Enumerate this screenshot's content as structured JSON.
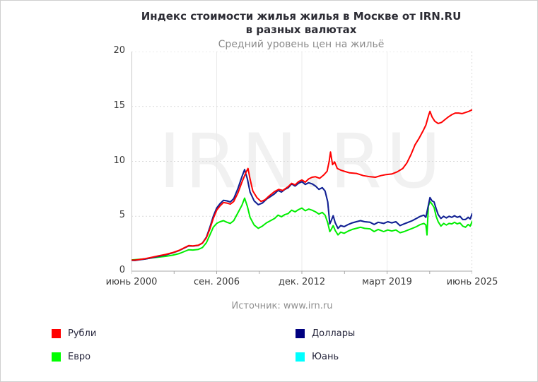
{
  "header": {
    "title_line1": "Индекс стоимости жилья жилья в Москве от IRN.RU",
    "title_line2": "в разных валютах",
    "subtitle": "Средний уровень цен на жильё"
  },
  "watermark": "IRN.RU",
  "source": "Источник: www.irn.ru",
  "legend": [
    {
      "id": "rub",
      "label": "Рубли",
      "color": "#ff0000"
    },
    {
      "id": "usd",
      "label": "Доллары",
      "color": "#000080"
    },
    {
      "id": "eur",
      "label": "Евро",
      "color": "#00ff00"
    },
    {
      "id": "cny",
      "label": "Юань",
      "color": "#00ffff"
    }
  ],
  "chart_data": {
    "type": "line",
    "title": "Индекс стоимости жилья жилья в Москве от IRN.RU в разных валютах",
    "subtitle": "Средний уровень цен на жильё",
    "xlabel": "",
    "ylabel": "",
    "xlim": [
      2000.5,
      2025.5
    ],
    "ylim": [
      0,
      20
    ],
    "y_ticks": [
      0,
      5,
      10,
      15,
      20
    ],
    "x_ticks": [
      {
        "label": "июнь 2000",
        "x": 2000.5
      },
      {
        "label": "сен. 2006",
        "x": 2006.75
      },
      {
        "label": "дек. 2012",
        "x": 2013.0
      },
      {
        "label": "март 2019",
        "x": 2019.25
      },
      {
        "label": "июнь 2025",
        "x": 2025.5
      }
    ],
    "grid": {
      "horizontal": "dotted",
      "vertical": "light-solid"
    },
    "legend_position": "bottom",
    "series": [
      {
        "id": "cny",
        "name": "Юань",
        "color": "#00ffff",
        "note": "not separately visible, coincides with Доллары",
        "points": "same_as:Доллары"
      },
      {
        "id": "eur",
        "name": "Евро",
        "color": "#00ee00",
        "points": [
          [
            2000.5,
            1.02
          ],
          [
            2000.75,
            1.05
          ],
          [
            2001,
            1.07
          ],
          [
            2001.5,
            1.12
          ],
          [
            2002,
            1.2
          ],
          [
            2002.5,
            1.28
          ],
          [
            2003,
            1.35
          ],
          [
            2003.5,
            1.45
          ],
          [
            2004,
            1.6
          ],
          [
            2004.4,
            1.8
          ],
          [
            2004.7,
            1.95
          ],
          [
            2005,
            1.92
          ],
          [
            2005.4,
            1.98
          ],
          [
            2005.7,
            2.15
          ],
          [
            2006,
            2.6
          ],
          [
            2006.25,
            3.3
          ],
          [
            2006.5,
            4.0
          ],
          [
            2006.75,
            4.35
          ],
          [
            2007,
            4.5
          ],
          [
            2007.25,
            4.6
          ],
          [
            2007.5,
            4.45
          ],
          [
            2007.75,
            4.35
          ],
          [
            2008,
            4.6
          ],
          [
            2008.3,
            5.3
          ],
          [
            2008.6,
            6.0
          ],
          [
            2008.8,
            6.65
          ],
          [
            2009,
            5.9
          ],
          [
            2009.2,
            4.9
          ],
          [
            2009.5,
            4.2
          ],
          [
            2009.8,
            3.9
          ],
          [
            2010.1,
            4.1
          ],
          [
            2010.4,
            4.4
          ],
          [
            2010.7,
            4.6
          ],
          [
            2011,
            4.8
          ],
          [
            2011.25,
            5.1
          ],
          [
            2011.5,
            4.95
          ],
          [
            2011.75,
            5.15
          ],
          [
            2012,
            5.25
          ],
          [
            2012.25,
            5.55
          ],
          [
            2012.5,
            5.4
          ],
          [
            2012.75,
            5.6
          ],
          [
            2013,
            5.75
          ],
          [
            2013.25,
            5.5
          ],
          [
            2013.5,
            5.65
          ],
          [
            2013.75,
            5.55
          ],
          [
            2014,
            5.4
          ],
          [
            2014.25,
            5.2
          ],
          [
            2014.5,
            5.35
          ],
          [
            2014.7,
            5.1
          ],
          [
            2014.9,
            4.4
          ],
          [
            2015.05,
            3.6
          ],
          [
            2015.15,
            3.8
          ],
          [
            2015.3,
            4.15
          ],
          [
            2015.45,
            3.7
          ],
          [
            2015.65,
            3.3
          ],
          [
            2015.85,
            3.55
          ],
          [
            2016.1,
            3.45
          ],
          [
            2016.4,
            3.65
          ],
          [
            2016.7,
            3.8
          ],
          [
            2017,
            3.9
          ],
          [
            2017.3,
            4.0
          ],
          [
            2017.6,
            3.9
          ],
          [
            2018,
            3.85
          ],
          [
            2018.3,
            3.6
          ],
          [
            2018.6,
            3.8
          ],
          [
            2019,
            3.6
          ],
          [
            2019.3,
            3.75
          ],
          [
            2019.6,
            3.65
          ],
          [
            2019.9,
            3.75
          ],
          [
            2020.2,
            3.5
          ],
          [
            2020.5,
            3.6
          ],
          [
            2020.8,
            3.75
          ],
          [
            2021.1,
            3.9
          ],
          [
            2021.4,
            4.05
          ],
          [
            2021.7,
            4.25
          ],
          [
            2021.95,
            4.35
          ],
          [
            2022.1,
            4.2
          ],
          [
            2022.18,
            3.3
          ],
          [
            2022.28,
            5.9
          ],
          [
            2022.4,
            6.35
          ],
          [
            2022.55,
            6.1
          ],
          [
            2022.7,
            5.8
          ],
          [
            2022.85,
            5.0
          ],
          [
            2023,
            4.5
          ],
          [
            2023.2,
            4.1
          ],
          [
            2023.4,
            4.35
          ],
          [
            2023.6,
            4.2
          ],
          [
            2023.8,
            4.35
          ],
          [
            2024,
            4.3
          ],
          [
            2024.2,
            4.45
          ],
          [
            2024.4,
            4.3
          ],
          [
            2024.6,
            4.4
          ],
          [
            2024.8,
            4.1
          ],
          [
            2025,
            4.0
          ],
          [
            2025.2,
            4.25
          ],
          [
            2025.35,
            4.1
          ],
          [
            2025.5,
            4.55
          ]
        ]
      },
      {
        "id": "usd",
        "name": "Доллары",
        "color": "#1a1a90",
        "points": [
          [
            2000.5,
            0.98
          ],
          [
            2000.75,
            0.97
          ],
          [
            2001,
            1.02
          ],
          [
            2001.5,
            1.1
          ],
          [
            2002,
            1.22
          ],
          [
            2002.5,
            1.35
          ],
          [
            2003,
            1.48
          ],
          [
            2003.5,
            1.65
          ],
          [
            2004,
            1.88
          ],
          [
            2004.4,
            2.12
          ],
          [
            2004.7,
            2.3
          ],
          [
            2005,
            2.28
          ],
          [
            2005.4,
            2.35
          ],
          [
            2005.7,
            2.55
          ],
          [
            2006,
            3.1
          ],
          [
            2006.25,
            4.0
          ],
          [
            2006.5,
            5.0
          ],
          [
            2006.75,
            5.75
          ],
          [
            2007,
            6.15
          ],
          [
            2007.25,
            6.45
          ],
          [
            2007.5,
            6.4
          ],
          [
            2007.75,
            6.3
          ],
          [
            2008,
            6.6
          ],
          [
            2008.3,
            7.5
          ],
          [
            2008.6,
            8.6
          ],
          [
            2008.8,
            9.25
          ],
          [
            2009,
            8.4
          ],
          [
            2009.2,
            7.2
          ],
          [
            2009.5,
            6.4
          ],
          [
            2009.8,
            6.05
          ],
          [
            2010.1,
            6.2
          ],
          [
            2010.4,
            6.55
          ],
          [
            2010.7,
            6.8
          ],
          [
            2011,
            7.05
          ],
          [
            2011.25,
            7.35
          ],
          [
            2011.5,
            7.2
          ],
          [
            2011.75,
            7.45
          ],
          [
            2012,
            7.6
          ],
          [
            2012.25,
            7.95
          ],
          [
            2012.5,
            7.75
          ],
          [
            2012.75,
            8.0
          ],
          [
            2013,
            8.15
          ],
          [
            2013.25,
            7.9
          ],
          [
            2013.5,
            8.05
          ],
          [
            2013.75,
            7.95
          ],
          [
            2014,
            7.75
          ],
          [
            2014.25,
            7.45
          ],
          [
            2014.5,
            7.6
          ],
          [
            2014.7,
            7.3
          ],
          [
            2014.9,
            6.3
          ],
          [
            2015.05,
            4.3
          ],
          [
            2015.15,
            4.6
          ],
          [
            2015.3,
            5.05
          ],
          [
            2015.45,
            4.4
          ],
          [
            2015.65,
            3.9
          ],
          [
            2015.85,
            4.15
          ],
          [
            2016.1,
            4.05
          ],
          [
            2016.4,
            4.25
          ],
          [
            2016.7,
            4.4
          ],
          [
            2017,
            4.5
          ],
          [
            2017.3,
            4.6
          ],
          [
            2017.6,
            4.5
          ],
          [
            2018,
            4.45
          ],
          [
            2018.3,
            4.25
          ],
          [
            2018.6,
            4.45
          ],
          [
            2019,
            4.35
          ],
          [
            2019.3,
            4.5
          ],
          [
            2019.6,
            4.4
          ],
          [
            2019.9,
            4.5
          ],
          [
            2020.2,
            4.15
          ],
          [
            2020.5,
            4.3
          ],
          [
            2020.8,
            4.45
          ],
          [
            2021.1,
            4.6
          ],
          [
            2021.4,
            4.8
          ],
          [
            2021.7,
            5.0
          ],
          [
            2021.95,
            5.1
          ],
          [
            2022.1,
            4.9
          ],
          [
            2022.25,
            5.8
          ],
          [
            2022.4,
            6.7
          ],
          [
            2022.55,
            6.4
          ],
          [
            2022.7,
            6.3
          ],
          [
            2022.85,
            5.7
          ],
          [
            2023,
            5.15
          ],
          [
            2023.2,
            4.8
          ],
          [
            2023.4,
            5.0
          ],
          [
            2023.6,
            4.85
          ],
          [
            2023.8,
            5.0
          ],
          [
            2024,
            4.9
          ],
          [
            2024.2,
            5.05
          ],
          [
            2024.4,
            4.9
          ],
          [
            2024.6,
            5.0
          ],
          [
            2024.8,
            4.7
          ],
          [
            2025,
            4.7
          ],
          [
            2025.2,
            4.9
          ],
          [
            2025.35,
            4.75
          ],
          [
            2025.5,
            5.25
          ]
        ]
      },
      {
        "id": "rub",
        "name": "Рубли",
        "color": "#ff0000",
        "points": [
          [
            2000.5,
            1.0
          ],
          [
            2000.75,
            1.0
          ],
          [
            2001,
            1.05
          ],
          [
            2001.5,
            1.13
          ],
          [
            2002,
            1.27
          ],
          [
            2002.5,
            1.4
          ],
          [
            2003,
            1.52
          ],
          [
            2003.5,
            1.68
          ],
          [
            2004,
            1.9
          ],
          [
            2004.4,
            2.15
          ],
          [
            2004.7,
            2.33
          ],
          [
            2005,
            2.3
          ],
          [
            2005.4,
            2.36
          ],
          [
            2005.7,
            2.55
          ],
          [
            2006,
            3.05
          ],
          [
            2006.25,
            3.85
          ],
          [
            2006.5,
            4.8
          ],
          [
            2006.75,
            5.55
          ],
          [
            2007,
            5.95
          ],
          [
            2007.25,
            6.25
          ],
          [
            2007.5,
            6.2
          ],
          [
            2007.75,
            6.1
          ],
          [
            2008,
            6.35
          ],
          [
            2008.3,
            7.1
          ],
          [
            2008.6,
            8.1
          ],
          [
            2008.9,
            9.0
          ],
          [
            2009.05,
            9.35
          ],
          [
            2009.2,
            8.4
          ],
          [
            2009.4,
            7.3
          ],
          [
            2009.7,
            6.7
          ],
          [
            2010,
            6.35
          ],
          [
            2010.3,
            6.5
          ],
          [
            2010.6,
            6.85
          ],
          [
            2011,
            7.25
          ],
          [
            2011.3,
            7.45
          ],
          [
            2011.6,
            7.35
          ],
          [
            2012,
            7.7
          ],
          [
            2012.25,
            8.0
          ],
          [
            2012.5,
            7.85
          ],
          [
            2012.75,
            8.15
          ],
          [
            2013,
            8.3
          ],
          [
            2013.25,
            8.1
          ],
          [
            2013.5,
            8.4
          ],
          [
            2013.75,
            8.55
          ],
          [
            2014,
            8.6
          ],
          [
            2014.3,
            8.45
          ],
          [
            2014.6,
            8.75
          ],
          [
            2014.85,
            9.1
          ],
          [
            2015.0,
            10.0
          ],
          [
            2015.1,
            10.85
          ],
          [
            2015.25,
            9.7
          ],
          [
            2015.4,
            9.95
          ],
          [
            2015.6,
            9.35
          ],
          [
            2015.85,
            9.2
          ],
          [
            2016.1,
            9.1
          ],
          [
            2016.5,
            8.95
          ],
          [
            2017,
            8.9
          ],
          [
            2017.5,
            8.7
          ],
          [
            2018,
            8.6
          ],
          [
            2018.4,
            8.55
          ],
          [
            2018.8,
            8.7
          ],
          [
            2019.2,
            8.8
          ],
          [
            2019.6,
            8.85
          ],
          [
            2020,
            9.05
          ],
          [
            2020.4,
            9.35
          ],
          [
            2020.7,
            9.85
          ],
          [
            2021,
            10.6
          ],
          [
            2021.3,
            11.5
          ],
          [
            2021.6,
            12.1
          ],
          [
            2021.9,
            12.8
          ],
          [
            2022.1,
            13.3
          ],
          [
            2022.3,
            14.2
          ],
          [
            2022.4,
            14.55
          ],
          [
            2022.55,
            14.05
          ],
          [
            2022.75,
            13.65
          ],
          [
            2023,
            13.45
          ],
          [
            2023.25,
            13.55
          ],
          [
            2023.5,
            13.8
          ],
          [
            2023.75,
            14.05
          ],
          [
            2024,
            14.25
          ],
          [
            2024.25,
            14.4
          ],
          [
            2024.5,
            14.4
          ],
          [
            2024.75,
            14.35
          ],
          [
            2025,
            14.45
          ],
          [
            2025.25,
            14.55
          ],
          [
            2025.5,
            14.7
          ]
        ]
      }
    ]
  }
}
